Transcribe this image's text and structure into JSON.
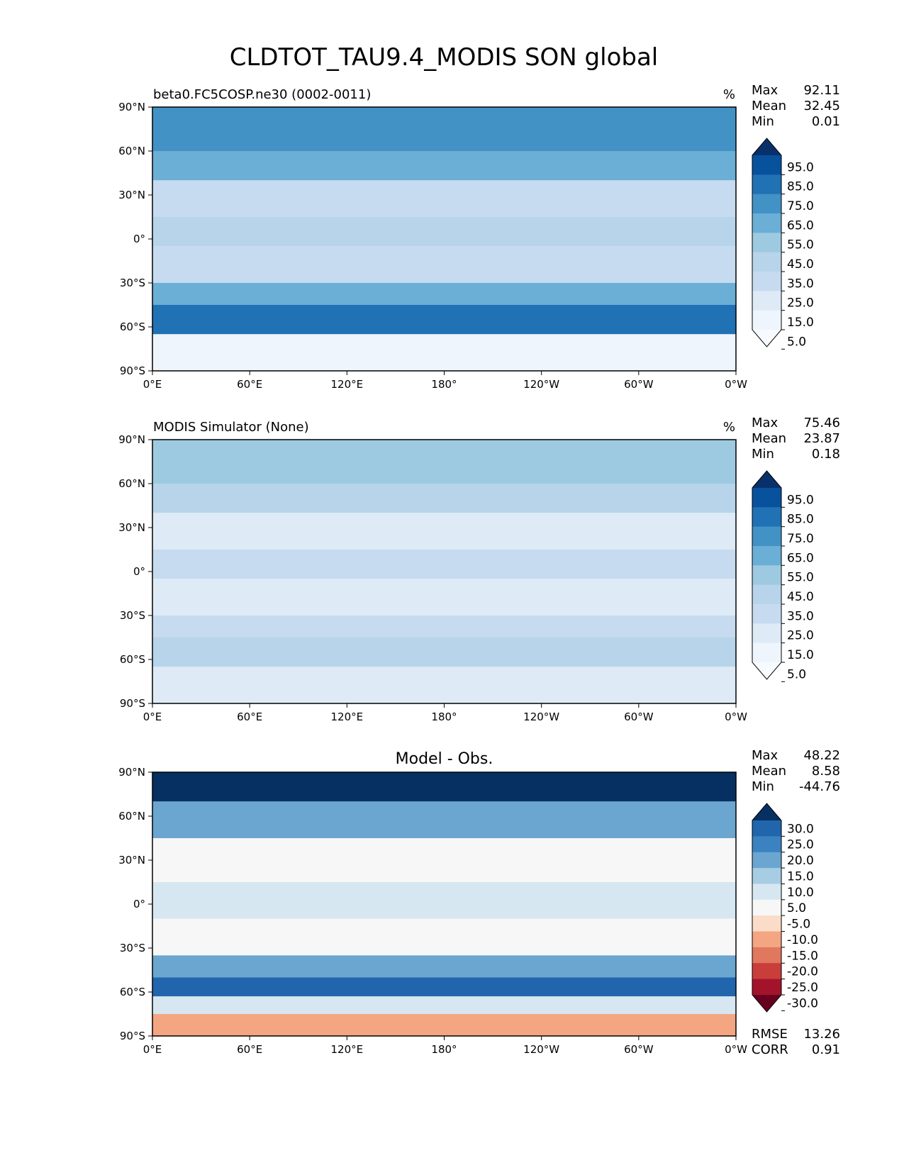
{
  "figure": {
    "title": "CLDTOT_TAU9.4_MODIS SON global"
  },
  "chart_data": [
    {
      "type": "heatmap",
      "map_projection": "equirectangular",
      "title_left": "beta0.FC5COSP.ne30 (0002-0011)",
      "title_center": "",
      "units": "%",
      "stats": [
        {
          "label": "Max",
          "value": "92.11"
        },
        {
          "label": "Mean",
          "value": "32.45"
        },
        {
          "label": "Min",
          "value": "0.01"
        }
      ],
      "extra_stats": [],
      "x_ticks": [
        "0°E",
        "60°E",
        "120°E",
        "180°",
        "120°W",
        "60°W",
        "0°W"
      ],
      "y_ticks": [
        "90°N",
        "60°N",
        "30°N",
        "0°",
        "30°S",
        "60°S",
        "90°S"
      ],
      "xlim": [
        0,
        360
      ],
      "ylim": [
        -90,
        90
      ],
      "colorbar": {
        "labels": [
          "95.0",
          "85.0",
          "75.0",
          "65.0",
          "55.0",
          "45.0",
          "35.0",
          "25.0",
          "15.0",
          "5.0"
        ],
        "colors": [
          "#08306b",
          "#08519c",
          "#2171b5",
          "#4292c6",
          "#6baed6",
          "#9ecae1",
          "#b7d4ea",
          "#c6dbef",
          "#deebf7",
          "#eef5fc",
          "#f7fbff"
        ],
        "extend": "both"
      },
      "field": {
        "lat_bands": [
          {
            "lat": [
              60,
              90
            ],
            "value": 72
          },
          {
            "lat": [
              40,
              60
            ],
            "value": 58
          },
          {
            "lat": [
              15,
              40
            ],
            "value": 30
          },
          {
            "lat": [
              -5,
              15
            ],
            "value": 38
          },
          {
            "lat": [
              -30,
              -5
            ],
            "value": 25
          },
          {
            "lat": [
              -45,
              -30
            ],
            "value": 55
          },
          {
            "lat": [
              -65,
              -45
            ],
            "value": 76
          },
          {
            "lat": [
              -90,
              -65
            ],
            "value": 8
          }
        ]
      }
    },
    {
      "type": "heatmap",
      "map_projection": "equirectangular",
      "title_left": "MODIS Simulator (None)",
      "title_center": "",
      "units": "%",
      "stats": [
        {
          "label": "Max",
          "value": "75.46"
        },
        {
          "label": "Mean",
          "value": "23.87"
        },
        {
          "label": "Min",
          "value": "0.18"
        }
      ],
      "extra_stats": [],
      "x_ticks": [
        "0°E",
        "60°E",
        "120°E",
        "180°",
        "120°W",
        "60°W",
        "0°W"
      ],
      "y_ticks": [
        "90°N",
        "60°N",
        "30°N",
        "0°",
        "30°S",
        "60°S",
        "90°S"
      ],
      "xlim": [
        0,
        360
      ],
      "ylim": [
        -90,
        90
      ],
      "colorbar": {
        "labels": [
          "95.0",
          "85.0",
          "75.0",
          "65.0",
          "55.0",
          "45.0",
          "35.0",
          "25.0",
          "15.0",
          "5.0"
        ],
        "colors": [
          "#08306b",
          "#08519c",
          "#2171b5",
          "#4292c6",
          "#6baed6",
          "#9ecae1",
          "#b7d4ea",
          "#c6dbef",
          "#deebf7",
          "#eef5fc",
          "#f7fbff"
        ],
        "extend": "both"
      },
      "field": {
        "lat_bands": [
          {
            "lat": [
              60,
              90
            ],
            "value": 45
          },
          {
            "lat": [
              40,
              60
            ],
            "value": 38
          },
          {
            "lat": [
              15,
              40
            ],
            "value": 22
          },
          {
            "lat": [
              -5,
              15
            ],
            "value": 26
          },
          {
            "lat": [
              -30,
              -5
            ],
            "value": 18
          },
          {
            "lat": [
              -45,
              -30
            ],
            "value": 33
          },
          {
            "lat": [
              -65,
              -45
            ],
            "value": 42
          },
          {
            "lat": [
              -90,
              -65
            ],
            "value": 22
          }
        ]
      }
    },
    {
      "type": "heatmap",
      "map_projection": "equirectangular",
      "title_left": "",
      "title_center": "Model - Obs.",
      "units": "",
      "stats": [
        {
          "label": "Max",
          "value": "48.22"
        },
        {
          "label": "Mean",
          "value": "8.58"
        },
        {
          "label": "Min",
          "value": "-44.76"
        }
      ],
      "extra_stats": [
        {
          "label": "RMSE",
          "value": "13.26"
        },
        {
          "label": "CORR",
          "value": "0.91"
        }
      ],
      "x_ticks": [
        "0°E",
        "60°E",
        "120°E",
        "180°",
        "120°W",
        "60°W",
        "0°W"
      ],
      "y_ticks": [
        "90°N",
        "60°N",
        "30°N",
        "0°",
        "30°S",
        "60°S",
        "90°S"
      ],
      "xlim": [
        0,
        360
      ],
      "ylim": [
        -90,
        90
      ],
      "colorbar": {
        "labels": [
          "30.0",
          "25.0",
          "20.0",
          "15.0",
          "10.0",
          "5.0",
          "-5.0",
          "-10.0",
          "-15.0",
          "-20.0",
          "-25.0",
          "-30.0"
        ],
        "colors": [
          "#053061",
          "#2166ac",
          "#3a83c0",
          "#6aa6d0",
          "#a6cde3",
          "#d6e7f1",
          "#f7f7f7",
          "#fbdcc8",
          "#f4a582",
          "#e0775f",
          "#c93d3b",
          "#a3142b",
          "#67001f"
        ],
        "extend": "both"
      },
      "field": {
        "lat_bands": [
          {
            "lat": [
              70,
              90
            ],
            "value": 35
          },
          {
            "lat": [
              45,
              70
            ],
            "value": 17
          },
          {
            "lat": [
              15,
              45
            ],
            "value": 3
          },
          {
            "lat": [
              -10,
              15
            ],
            "value": 6
          },
          {
            "lat": [
              -35,
              -10
            ],
            "value": 2
          },
          {
            "lat": [
              -50,
              -35
            ],
            "value": 18
          },
          {
            "lat": [
              -63,
              -50
            ],
            "value": 28
          },
          {
            "lat": [
              -75,
              -63
            ],
            "value": 7
          },
          {
            "lat": [
              -90,
              -75
            ],
            "value": -12
          }
        ]
      }
    }
  ]
}
